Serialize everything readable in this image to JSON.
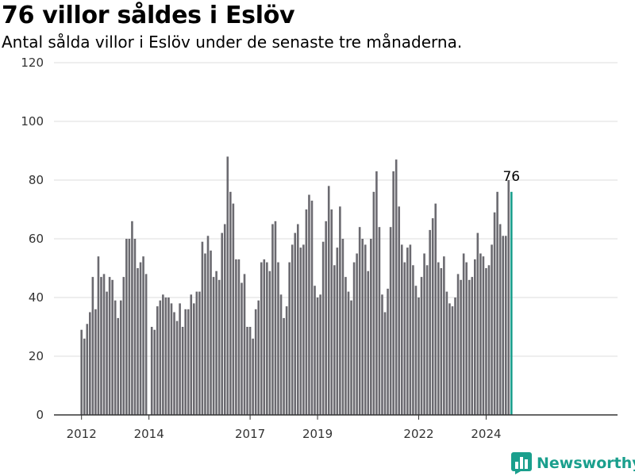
{
  "title": "76 villor såldes i Eslöv",
  "subtitle": "Antal sålda villor i Eslöv under de senaste tre månaderna.",
  "brand": {
    "name": "Newsworthy",
    "icon": "bar-chart-logo-icon"
  },
  "colors": {
    "bar": "#6b6a70",
    "highlight": "#1a9f8d",
    "grid": "#dddddd",
    "axis": "#333333"
  },
  "chart_data": {
    "type": "bar",
    "title": "76 villor såldes i Eslöv",
    "subtitle": "Antal sålda villor i Eslöv under de senaste tre månaderna.",
    "xlabel": "",
    "ylabel": "",
    "ylim": [
      0,
      120
    ],
    "yticks": [
      0,
      20,
      40,
      60,
      80,
      100,
      120
    ],
    "xticks": [
      "2012",
      "2014",
      "2017",
      "2019",
      "2022",
      "2024"
    ],
    "grid": true,
    "frequency": "monthly (rolling three-month totals)",
    "start": "2012-01",
    "end": "2024-12",
    "values": [
      29,
      26,
      31,
      35,
      47,
      36,
      54,
      47,
      48,
      42,
      47,
      46,
      39,
      33,
      39,
      47,
      60,
      60,
      66,
      60,
      50,
      52,
      54,
      48,
      0,
      30,
      29,
      37,
      39,
      41,
      40,
      40,
      38,
      35,
      32,
      38,
      30,
      36,
      36,
      41,
      38,
      42,
      42,
      59,
      55,
      61,
      56,
      47,
      49,
      46,
      62,
      65,
      88,
      76,
      72,
      53,
      53,
      45,
      48,
      30,
      30,
      26,
      36,
      39,
      52,
      53,
      52,
      49,
      65,
      66,
      52,
      41,
      33,
      37,
      52,
      58,
      62,
      65,
      57,
      58,
      70,
      75,
      73,
      44,
      40,
      41,
      59,
      66,
      78,
      70,
      51,
      57,
      71,
      60,
      47,
      42,
      39,
      52,
      55,
      64,
      60,
      58,
      49,
      60,
      76,
      83,
      64,
      41,
      35,
      43,
      64,
      83,
      87,
      71,
      58,
      52,
      57,
      58,
      51,
      44,
      40,
      47,
      55,
      51,
      63,
      67,
      72,
      52,
      50,
      54,
      42,
      38,
      37,
      40,
      48,
      46,
      55,
      52,
      46,
      47,
      53,
      62,
      55,
      54,
      50,
      51,
      58,
      69,
      76,
      65,
      61,
      61,
      80,
      76
    ],
    "highlight_last": true,
    "annotation": {
      "text": "76",
      "value": 76
    }
  }
}
